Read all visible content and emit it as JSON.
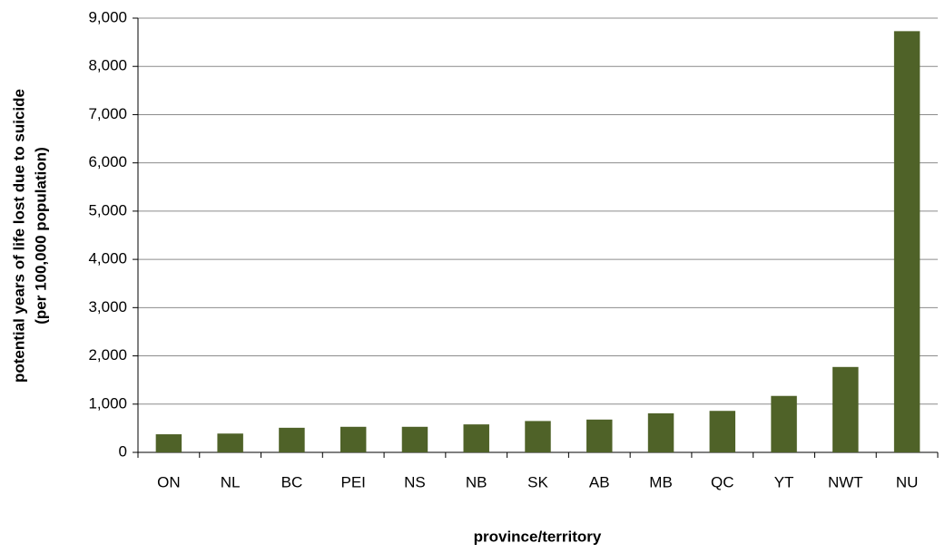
{
  "chart_data": {
    "type": "bar",
    "ylabel": [
      "potential years of life lost due to suicide",
      "(per 100,000 population)"
    ],
    "xlabel": "province/territory",
    "categories": [
      "ON",
      "NL",
      "BC",
      "PEI",
      "NS",
      "NB",
      "SK",
      "AB",
      "MB",
      "QC",
      "YT",
      "NWT",
      "NU"
    ],
    "values": [
      375,
      390,
      510,
      530,
      530,
      580,
      650,
      680,
      810,
      860,
      1170,
      1770,
      8730
    ],
    "color": "#4f6228",
    "ylim": [
      0,
      9000
    ],
    "yticks": [
      0,
      {
        "value": 1000,
        "label": "1,000"
      },
      {
        "value": 2000,
        "label": "2,000"
      },
      {
        "value": 3000,
        "label": "3,000"
      },
      {
        "value": 4000,
        "label": "4,000"
      },
      {
        "value": 5000,
        "label": "5,000"
      },
      {
        "value": 6000,
        "label": "6,000"
      },
      {
        "value": 7000,
        "label": "7,000"
      },
      {
        "value": 8000,
        "label": "8,000"
      },
      {
        "value": 9000,
        "label": "9,000"
      }
    ],
    "grid": true
  }
}
